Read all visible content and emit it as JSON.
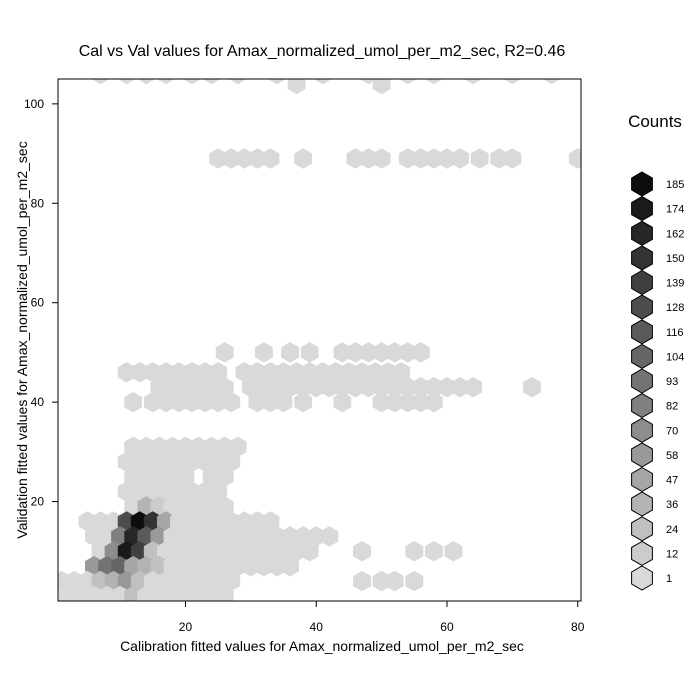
{
  "chart_data": {
    "type": "heatmap",
    "subtype": "hexbin",
    "title": "Cal vs Val values for Amax_normalized_umol_per_m2_sec, R2=0.46",
    "xlabel": "Calibration fitted values for Amax_normalized_umol_per_m2_sec",
    "ylabel": "Validation fitted values for Amax_normalized_umol_per_m2_sec",
    "xlim": [
      0.5,
      80.5
    ],
    "ylim": [
      0,
      105
    ],
    "xticks": [
      20,
      40,
      60,
      80
    ],
    "yticks": [
      20,
      40,
      60,
      80,
      100
    ],
    "legend": {
      "title": "Counts",
      "placement": "right",
      "levels": [
        1,
        12,
        24,
        36,
        47,
        58,
        70,
        82,
        93,
        104,
        116,
        128,
        139,
        150,
        162,
        174,
        185
      ]
    },
    "colors": {
      "low": "#d9d9d9",
      "high": "#0d0d0d",
      "edge": "#000000"
    },
    "bins": [
      [
        7,
        106,
        2
      ],
      [
        11,
        106,
        2
      ],
      [
        14,
        106,
        2
      ],
      [
        17,
        106,
        2
      ],
      [
        21,
        106,
        2
      ],
      [
        24,
        106,
        2
      ],
      [
        28,
        106,
        2
      ],
      [
        34,
        106,
        2
      ],
      [
        41,
        106,
        2
      ],
      [
        48,
        106,
        2
      ],
      [
        54,
        106,
        2
      ],
      [
        58,
        106,
        2
      ],
      [
        64,
        106,
        2
      ],
      [
        70,
        106,
        2
      ],
      [
        76,
        106,
        2
      ],
      [
        37,
        104,
        1
      ],
      [
        50,
        104,
        1
      ],
      [
        25,
        89,
        1
      ],
      [
        27,
        89,
        1
      ],
      [
        29,
        89,
        1
      ],
      [
        31,
        89,
        1
      ],
      [
        33,
        89,
        1
      ],
      [
        38,
        89,
        1
      ],
      [
        46,
        89,
        1
      ],
      [
        48,
        89,
        1
      ],
      [
        50,
        89,
        1
      ],
      [
        54,
        89,
        1
      ],
      [
        56,
        89,
        1
      ],
      [
        58,
        89,
        1
      ],
      [
        60,
        89,
        1
      ],
      [
        62,
        89,
        1
      ],
      [
        65,
        89,
        1
      ],
      [
        68,
        89,
        1
      ],
      [
        70,
        89,
        1
      ],
      [
        80,
        89,
        1
      ],
      [
        26,
        50,
        1
      ],
      [
        32,
        50,
        1
      ],
      [
        36,
        50,
        1
      ],
      [
        39,
        50,
        1
      ],
      [
        44,
        50,
        1
      ],
      [
        46,
        50,
        1
      ],
      [
        48,
        50,
        1
      ],
      [
        50,
        50,
        1
      ],
      [
        52,
        50,
        1
      ],
      [
        54,
        50,
        1
      ],
      [
        56,
        50,
        1
      ],
      [
        11,
        46,
        1
      ],
      [
        13,
        46,
        1
      ],
      [
        15,
        46,
        1
      ],
      [
        17,
        46,
        1
      ],
      [
        19,
        46,
        1
      ],
      [
        21,
        46,
        1
      ],
      [
        23,
        46,
        1
      ],
      [
        25,
        46,
        1
      ],
      [
        29,
        46,
        1
      ],
      [
        31,
        46,
        1
      ],
      [
        33,
        46,
        1
      ],
      [
        35,
        46,
        1
      ],
      [
        37,
        46,
        1
      ],
      [
        39,
        46,
        1
      ],
      [
        41,
        46,
        1
      ],
      [
        43,
        46,
        1
      ],
      [
        45,
        46,
        1
      ],
      [
        47,
        46,
        1
      ],
      [
        49,
        46,
        1
      ],
      [
        51,
        46,
        1
      ],
      [
        53,
        46,
        1
      ],
      [
        16,
        43,
        1
      ],
      [
        18,
        43,
        1
      ],
      [
        20,
        43,
        1
      ],
      [
        22,
        43,
        1
      ],
      [
        24,
        43,
        1
      ],
      [
        26,
        43,
        1
      ],
      [
        30,
        43,
        1
      ],
      [
        32,
        43,
        1
      ],
      [
        34,
        43,
        1
      ],
      [
        36,
        43,
        1
      ],
      [
        38,
        43,
        1
      ],
      [
        40,
        43,
        1
      ],
      [
        42,
        43,
        1
      ],
      [
        44,
        43,
        1
      ],
      [
        46,
        43,
        1
      ],
      [
        48,
        43,
        1
      ],
      [
        50,
        43,
        1
      ],
      [
        52,
        43,
        1
      ],
      [
        54,
        43,
        1
      ],
      [
        56,
        43,
        1
      ],
      [
        58,
        43,
        1
      ],
      [
        60,
        43,
        1
      ],
      [
        62,
        43,
        1
      ],
      [
        64,
        43,
        1
      ],
      [
        73,
        43,
        1
      ],
      [
        12,
        40,
        1
      ],
      [
        15,
        40,
        1
      ],
      [
        17,
        40,
        1
      ],
      [
        19,
        40,
        1
      ],
      [
        21,
        40,
        1
      ],
      [
        23,
        40,
        1
      ],
      [
        25,
        40,
        1
      ],
      [
        27,
        40,
        1
      ],
      [
        31,
        40,
        1
      ],
      [
        33,
        40,
        1
      ],
      [
        35,
        40,
        1
      ],
      [
        38,
        40,
        1
      ],
      [
        44,
        40,
        1
      ],
      [
        50,
        40,
        1
      ],
      [
        52,
        40,
        1
      ],
      [
        54,
        40,
        1
      ],
      [
        56,
        40,
        1
      ],
      [
        58,
        40,
        1
      ],
      [
        12,
        31,
        1
      ],
      [
        14,
        31,
        1
      ],
      [
        16,
        31,
        1
      ],
      [
        18,
        31,
        1
      ],
      [
        20,
        31,
        1
      ],
      [
        22,
        31,
        1
      ],
      [
        24,
        31,
        1
      ],
      [
        26,
        31,
        1
      ],
      [
        28,
        31,
        1
      ],
      [
        11,
        28,
        1
      ],
      [
        13,
        28,
        1
      ],
      [
        15,
        28,
        1
      ],
      [
        17,
        28,
        1
      ],
      [
        19,
        28,
        1
      ],
      [
        21,
        28,
        1
      ],
      [
        23,
        28,
        1
      ],
      [
        25,
        28,
        1
      ],
      [
        27,
        28,
        1
      ],
      [
        12,
        25,
        1
      ],
      [
        14,
        25,
        1
      ],
      [
        16,
        25,
        1
      ],
      [
        18,
        25,
        1
      ],
      [
        20,
        25,
        1
      ],
      [
        24,
        25,
        1
      ],
      [
        26,
        25,
        1
      ],
      [
        11,
        22,
        1
      ],
      [
        13,
        22,
        1
      ],
      [
        15,
        22,
        1
      ],
      [
        17,
        22,
        1
      ],
      [
        19,
        22,
        1
      ],
      [
        21,
        22,
        1
      ],
      [
        23,
        22,
        1
      ],
      [
        25,
        22,
        1
      ],
      [
        12,
        19,
        8
      ],
      [
        14,
        19,
        40
      ],
      [
        16,
        19,
        18
      ],
      [
        18,
        19,
        1
      ],
      [
        20,
        19,
        1
      ],
      [
        22,
        19,
        1
      ],
      [
        24,
        19,
        1
      ],
      [
        26,
        19,
        1
      ],
      [
        5,
        16,
        1
      ],
      [
        7,
        16,
        8
      ],
      [
        9,
        16,
        1
      ],
      [
        11,
        16,
        136
      ],
      [
        13,
        16,
        185
      ],
      [
        15,
        16,
        155
      ],
      [
        17,
        16,
        47
      ],
      [
        19,
        16,
        1
      ],
      [
        21,
        16,
        1
      ],
      [
        23,
        16,
        1
      ],
      [
        25,
        16,
        1
      ],
      [
        27,
        16,
        1
      ],
      [
        29,
        16,
        1
      ],
      [
        31,
        16,
        1
      ],
      [
        33,
        16,
        1
      ],
      [
        6,
        13,
        1
      ],
      [
        8,
        13,
        8
      ],
      [
        10,
        13,
        82
      ],
      [
        12,
        13,
        162
      ],
      [
        14,
        13,
        116
      ],
      [
        16,
        13,
        58
      ],
      [
        18,
        13,
        8
      ],
      [
        20,
        13,
        1
      ],
      [
        22,
        13,
        1
      ],
      [
        24,
        13,
        1
      ],
      [
        26,
        13,
        1
      ],
      [
        28,
        13,
        1
      ],
      [
        30,
        13,
        1
      ],
      [
        32,
        13,
        1
      ],
      [
        34,
        13,
        1
      ],
      [
        36,
        13,
        1
      ],
      [
        38,
        13,
        1
      ],
      [
        40,
        13,
        1
      ],
      [
        42,
        13,
        1
      ],
      [
        7,
        10,
        8
      ],
      [
        9,
        10,
        70
      ],
      [
        11,
        10,
        174
      ],
      [
        13,
        10,
        139
      ],
      [
        15,
        10,
        24
      ],
      [
        17,
        10,
        8
      ],
      [
        19,
        10,
        1
      ],
      [
        21,
        10,
        1
      ],
      [
        23,
        10,
        1
      ],
      [
        25,
        10,
        1
      ],
      [
        27,
        10,
        1
      ],
      [
        29,
        10,
        1
      ],
      [
        31,
        10,
        1
      ],
      [
        33,
        10,
        1
      ],
      [
        35,
        10,
        1
      ],
      [
        37,
        10,
        1
      ],
      [
        39,
        10,
        1
      ],
      [
        47,
        10,
        1
      ],
      [
        55,
        10,
        1
      ],
      [
        58,
        10,
        1
      ],
      [
        61,
        10,
        1
      ],
      [
        6,
        7,
        58
      ],
      [
        8,
        7,
        93
      ],
      [
        10,
        7,
        104
      ],
      [
        12,
        7,
        47
      ],
      [
        14,
        7,
        36
      ],
      [
        16,
        7,
        24
      ],
      [
        18,
        7,
        1
      ],
      [
        20,
        7,
        1
      ],
      [
        22,
        7,
        1
      ],
      [
        24,
        7,
        1
      ],
      [
        26,
        7,
        1
      ],
      [
        28,
        7,
        1
      ],
      [
        30,
        7,
        1
      ],
      [
        32,
        7,
        1
      ],
      [
        34,
        7,
        1
      ],
      [
        36,
        7,
        1
      ],
      [
        1,
        4,
        1
      ],
      [
        3,
        4,
        1
      ],
      [
        5,
        4,
        8
      ],
      [
        7,
        4,
        24
      ],
      [
        9,
        4,
        36
      ],
      [
        11,
        4,
        58
      ],
      [
        13,
        4,
        24
      ],
      [
        15,
        4,
        8
      ],
      [
        17,
        4,
        1
      ],
      [
        19,
        4,
        1
      ],
      [
        21,
        4,
        1
      ],
      [
        23,
        4,
        1
      ],
      [
        25,
        4,
        1
      ],
      [
        27,
        4,
        1
      ],
      [
        47,
        4,
        1
      ],
      [
        50,
        4,
        1
      ],
      [
        52,
        4,
        1
      ],
      [
        55,
        4,
        1
      ],
      [
        2,
        1,
        1
      ],
      [
        4,
        1,
        8
      ],
      [
        6,
        1,
        8
      ],
      [
        8,
        1,
        8
      ],
      [
        10,
        1,
        8
      ],
      [
        12,
        1,
        24
      ],
      [
        14,
        1,
        8
      ],
      [
        16,
        1,
        8
      ],
      [
        18,
        1,
        1
      ],
      [
        20,
        1,
        1
      ],
      [
        22,
        1,
        1
      ],
      [
        24,
        1,
        1
      ],
      [
        26,
        1,
        1
      ]
    ]
  }
}
